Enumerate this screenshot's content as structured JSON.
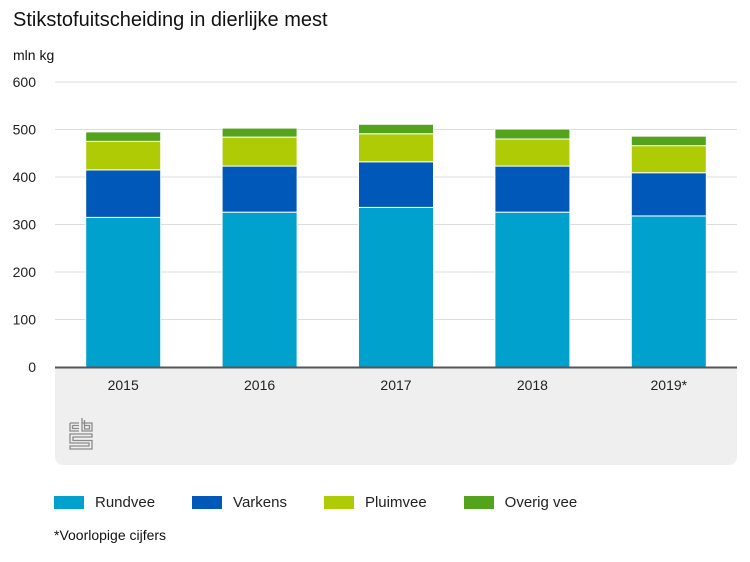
{
  "chart_data": {
    "type": "bar",
    "stacked": true,
    "title": "Stikstofuitscheiding in dierlijke mest",
    "ylabel": "mln kg",
    "xlabel": "",
    "ylim": [
      0,
      600
    ],
    "yticks": [
      0,
      100,
      200,
      300,
      400,
      500,
      600
    ],
    "grid": true,
    "legend_position": "bottom",
    "categories": [
      "2015",
      "2016",
      "2017",
      "2018",
      "2019*"
    ],
    "series": [
      {
        "name": "Rundvee",
        "color": "#00a1cd",
        "values": [
          315,
          326,
          336,
          326,
          318
        ]
      },
      {
        "name": "Varkens",
        "color": "#0058b8",
        "values": [
          100,
          97,
          96,
          97,
          91
        ]
      },
      {
        "name": "Pluimvee",
        "color": "#afcb05",
        "values": [
          60,
          61,
          59,
          57,
          57
        ]
      },
      {
        "name": "Overig vee",
        "color": "#53a31d",
        "values": [
          20,
          19,
          20,
          21,
          20
        ]
      }
    ],
    "footnote": "*Voorlopige cijfers"
  },
  "logo": {
    "icon": "cbs-logo-icon"
  }
}
